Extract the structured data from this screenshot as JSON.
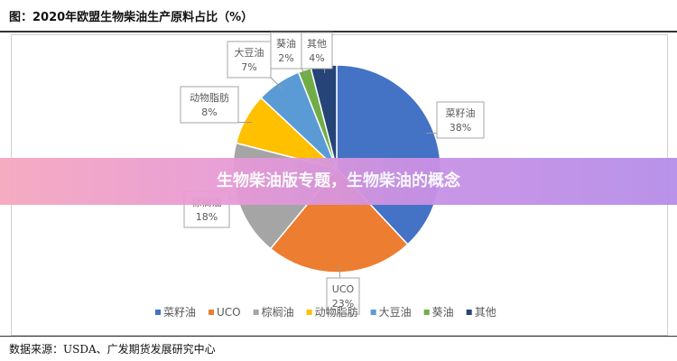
{
  "header": {
    "title": "图：2020年欧盟生物柴油生产原料占比（%）"
  },
  "banner": {
    "text": "生物柴油版专题，生物柴油的概念"
  },
  "source": {
    "text": "数据来源：USDA、广发期货发展研究中心"
  },
  "chart_data": {
    "type": "pie",
    "title": "",
    "slices": [
      {
        "label": "菜籽油",
        "value": 38,
        "value_label": "38%",
        "color": "#4472C4"
      },
      {
        "label": "UCO",
        "value": 23,
        "value_label": "23%",
        "color": "#ED7D31"
      },
      {
        "label": "棕榈油",
        "value": 18,
        "value_label": "18%",
        "color": "#A5A5A5"
      },
      {
        "label": "动物脂肪",
        "value": 8,
        "value_label": "8%",
        "color": "#FFC000"
      },
      {
        "label": "大豆油",
        "value": 7,
        "value_label": "7%",
        "color": "#5B9BD5"
      },
      {
        "label": "葵油",
        "value": 2,
        "value_label": "2%",
        "color": "#70AD47"
      },
      {
        "label": "其他",
        "value": 4,
        "value_label": "4%",
        "color": "#264478"
      }
    ],
    "legend": {
      "position": "bottom"
    },
    "start_angle": "12 o'clock",
    "direction": "clockwise"
  }
}
